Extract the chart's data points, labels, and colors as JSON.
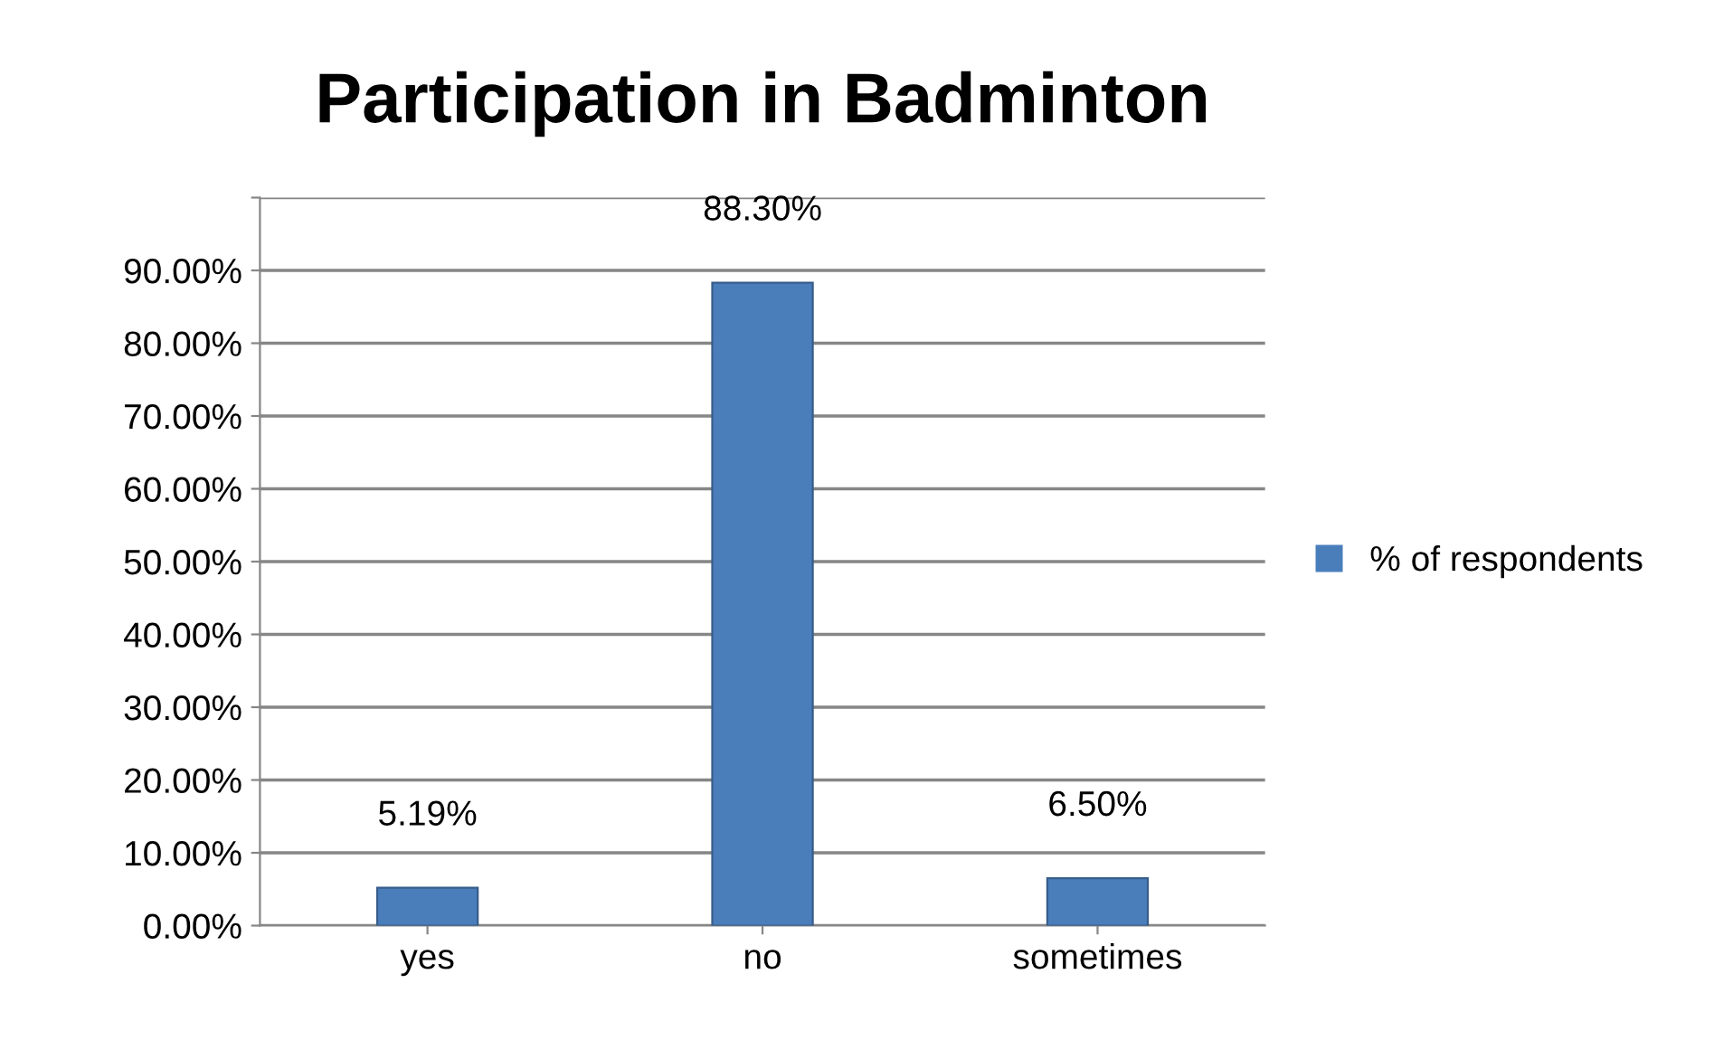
{
  "chart_data": {
    "type": "bar",
    "title": "Participation in Badminton",
    "categories": [
      "yes",
      "no",
      "sometimes"
    ],
    "series": [
      {
        "name": "% of respondents",
        "color": "#4a7ebb",
        "values": [
          5.19,
          88.3,
          6.5
        ],
        "value_labels": [
          "5.19%",
          "88.30%",
          "6.50%"
        ]
      }
    ],
    "ylim": [
      0,
      100
    ],
    "yticks": [
      {
        "value": 0,
        "label": "0.00%"
      },
      {
        "value": 10,
        "label": "10.00%"
      },
      {
        "value": 20,
        "label": "20.00%"
      },
      {
        "value": 30,
        "label": "30.00%"
      },
      {
        "value": 40,
        "label": "40.00%"
      },
      {
        "value": 50,
        "label": "50.00%"
      },
      {
        "value": 60,
        "label": "60.00%"
      },
      {
        "value": 70,
        "label": "70.00%"
      },
      {
        "value": 80,
        "label": "80.00%"
      },
      {
        "value": 90,
        "label": "90.00%"
      },
      {
        "value": 100,
        "label": null
      }
    ],
    "grid": "y",
    "legend": "right"
  }
}
